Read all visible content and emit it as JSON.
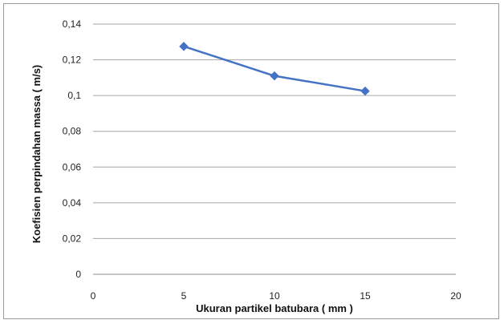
{
  "chart_data": {
    "type": "line",
    "title": "",
    "xlabel": "Ukuran partikel batubara ( mm )",
    "ylabel": "Koefisien perpindahan massa ( m/s)",
    "xlim": [
      0,
      20
    ],
    "ylim": [
      0,
      0.14
    ],
    "x_ticks": [
      "0",
      "5",
      "10",
      "15",
      "20"
    ],
    "y_ticks": [
      "0",
      "0,02",
      "0,04",
      "0,06",
      "0,08",
      "0,1",
      "0,12",
      "0,14"
    ],
    "grid": "horizontal",
    "legend": "none",
    "colors": {
      "series": "#4472C4",
      "grid": "#a6a6a6",
      "axis": "#8c8c8c"
    },
    "series": [
      {
        "x": [
          5,
          10,
          15
        ],
        "values": [
          0.1275,
          0.111,
          0.1025
        ],
        "marker": "diamond"
      }
    ]
  }
}
